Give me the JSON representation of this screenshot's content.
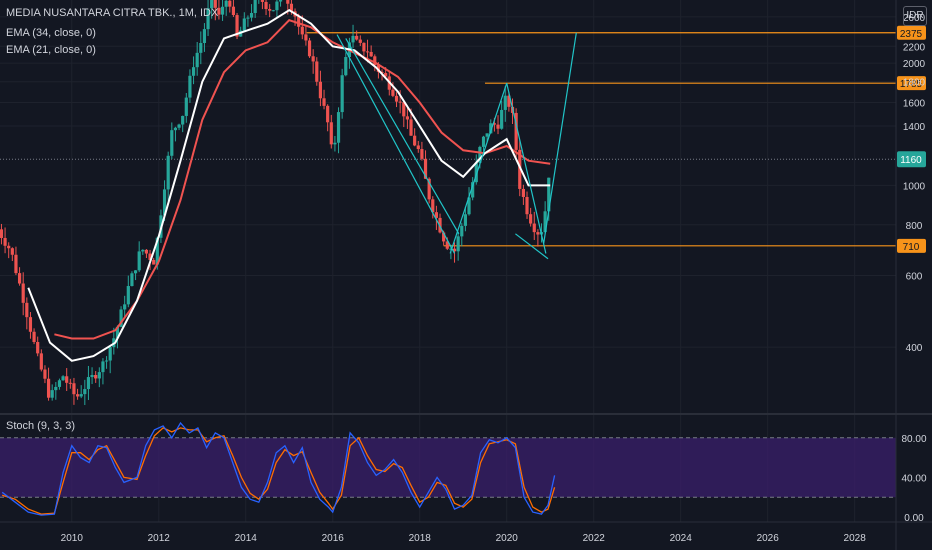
{
  "chart_data": {
    "type": "candlestick",
    "symbol_line": "MEDIA NUSANTARA CITRA TBK., 1M, IDX",
    "currency": "IDR",
    "indicators": [
      "EMA (34, close, 0)",
      "EMA (21, close, 0)"
    ],
    "oscillator_label": "Stoch (9, 3, 3)",
    "price_axis": {
      "ticks": [
        "2600",
        "2200",
        "2000",
        "1800",
        "1600",
        "1400",
        "1000",
        "800",
        "600",
        "400"
      ],
      "range": [
        280,
        2860
      ],
      "scale": "log"
    },
    "time_axis": {
      "ticks": [
        "2010",
        "2012",
        "2014",
        "2016",
        "2018",
        "2020",
        "2022",
        "2024",
        "2026",
        "2028"
      ],
      "range": [
        2008.35,
        2028.95
      ]
    },
    "levels": [
      {
        "value": 2375,
        "label": "2375",
        "start": 2015.4,
        "color": "#f7931a"
      },
      {
        "value": 1785,
        "label": "1785",
        "start": 2019.5,
        "color": "#f7931a"
      },
      {
        "value": 710,
        "label": "710",
        "start": 2018.55,
        "color": "#f7931a"
      }
    ],
    "last_price": {
      "value": 1160,
      "label": "1160",
      "color": "#26a69a"
    },
    "price_path": [
      [
        2008.3,
        780
      ],
      [
        2008.6,
        690
      ],
      [
        2008.9,
        520
      ],
      [
        2009.2,
        380
      ],
      [
        2009.5,
        300
      ],
      [
        2009.8,
        340
      ],
      [
        2010.1,
        300
      ],
      [
        2010.4,
        330
      ],
      [
        2010.7,
        360
      ],
      [
        2011.0,
        430
      ],
      [
        2011.3,
        560
      ],
      [
        2011.6,
        700
      ],
      [
        2011.9,
        650
      ],
      [
        2012.1,
        950
      ],
      [
        2012.3,
        1350
      ],
      [
        2012.55,
        1500
      ],
      [
        2012.8,
        2000
      ],
      [
        2013.0,
        2300
      ],
      [
        2013.2,
        2900
      ],
      [
        2013.4,
        2600
      ],
      [
        2013.6,
        2950
      ],
      [
        2013.8,
        2300
      ],
      [
        2014.0,
        2550
      ],
      [
        2014.3,
        2900
      ],
      [
        2014.6,
        2700
      ],
      [
        2014.9,
        2950
      ],
      [
        2015.1,
        2700
      ],
      [
        2015.3,
        2300
      ],
      [
        2015.5,
        2100
      ],
      [
        2015.7,
        1700
      ],
      [
        2015.9,
        1400
      ],
      [
        2016.0,
        1150
      ],
      [
        2016.2,
        1800
      ],
      [
        2016.4,
        2350
      ],
      [
        2016.6,
        2200
      ],
      [
        2016.8,
        2150
      ],
      [
        2017.0,
        1950
      ],
      [
        2017.2,
        1850
      ],
      [
        2017.4,
        1700
      ],
      [
        2017.6,
        1550
      ],
      [
        2017.8,
        1320
      ],
      [
        2018.0,
        1200
      ],
      [
        2018.2,
        950
      ],
      [
        2018.4,
        820
      ],
      [
        2018.6,
        720
      ],
      [
        2018.8,
        690
      ],
      [
        2019.0,
        820
      ],
      [
        2019.2,
        1000
      ],
      [
        2019.4,
        1250
      ],
      [
        2019.6,
        1400
      ],
      [
        2019.8,
        1420
      ],
      [
        2020.0,
        1660
      ],
      [
        2020.15,
        1450
      ],
      [
        2020.3,
        1000
      ],
      [
        2020.45,
        880
      ],
      [
        2020.6,
        800
      ],
      [
        2020.75,
        760
      ],
      [
        2020.85,
        800
      ],
      [
        2021.0,
        1160
      ]
    ],
    "ema21": [
      [
        2009.6,
        430
      ],
      [
        2010.0,
        420
      ],
      [
        2010.5,
        420
      ],
      [
        2011.0,
        440
      ],
      [
        2011.5,
        520
      ],
      [
        2012.0,
        650
      ],
      [
        2012.5,
        920
      ],
      [
        2013.0,
        1450
      ],
      [
        2013.5,
        1900
      ],
      [
        2014.0,
        2150
      ],
      [
        2014.5,
        2250
      ],
      [
        2015.0,
        2550
      ],
      [
        2015.5,
        2450
      ],
      [
        2016.0,
        2250
      ],
      [
        2016.5,
        2120
      ],
      [
        2017.0,
        2000
      ],
      [
        2017.5,
        1850
      ],
      [
        2018.0,
        1600
      ],
      [
        2018.5,
        1350
      ],
      [
        2019.0,
        1220
      ],
      [
        2019.5,
        1200
      ],
      [
        2020.0,
        1250
      ],
      [
        2020.5,
        1150
      ],
      [
        2021.0,
        1130
      ]
    ],
    "ema34": [
      [
        2009.0,
        560
      ],
      [
        2009.5,
        410
      ],
      [
        2010.0,
        370
      ],
      [
        2010.5,
        380
      ],
      [
        2011.0,
        410
      ],
      [
        2011.5,
        520
      ],
      [
        2012.0,
        750
      ],
      [
        2012.5,
        1150
      ],
      [
        2013.0,
        1800
      ],
      [
        2013.5,
        2300
      ],
      [
        2014.0,
        2400
      ],
      [
        2014.5,
        2500
      ],
      [
        2015.0,
        2700
      ],
      [
        2015.5,
        2500
      ],
      [
        2016.0,
        2200
      ],
      [
        2016.5,
        2150
      ],
      [
        2017.0,
        1950
      ],
      [
        2017.5,
        1700
      ],
      [
        2018.0,
        1400
      ],
      [
        2018.5,
        1150
      ],
      [
        2019.0,
        1050
      ],
      [
        2019.5,
        1200
      ],
      [
        2020.0,
        1300
      ],
      [
        2020.5,
        1000
      ],
      [
        2021.0,
        1000
      ]
    ],
    "pattern_lines": [
      [
        [
          2016.1,
          2350
        ],
        [
          2018.8,
          680
        ]
      ],
      [
        [
          2016.3,
          2300
        ],
        [
          2018.9,
          760
        ]
      ],
      [
        [
          2018.7,
          680
        ],
        [
          2020.0,
          1785
        ]
      ],
      [
        [
          2020.0,
          1785
        ],
        [
          2020.9,
          680
        ]
      ],
      [
        [
          2020.2,
          760
        ],
        [
          2020.95,
          660
        ]
      ],
      [
        [
          2020.85,
          720
        ],
        [
          2021.6,
          2375
        ]
      ]
    ],
    "stoch": {
      "range": [
        -5,
        100
      ],
      "ticks": [
        "80.00",
        "40.00",
        "0.00"
      ],
      "upper": 80,
      "lower": 20,
      "k": [
        [
          2008.4,
          25
        ],
        [
          2008.7,
          15
        ],
        [
          2009.0,
          5
        ],
        [
          2009.3,
          2
        ],
        [
          2009.6,
          3
        ],
        [
          2009.8,
          45
        ],
        [
          2010.0,
          72
        ],
        [
          2010.2,
          60
        ],
        [
          2010.4,
          55
        ],
        [
          2010.6,
          72
        ],
        [
          2010.8,
          70
        ],
        [
          2011.0,
          50
        ],
        [
          2011.2,
          35
        ],
        [
          2011.5,
          40
        ],
        [
          2011.7,
          72
        ],
        [
          2011.9,
          88
        ],
        [
          2012.1,
          92
        ],
        [
          2012.3,
          80
        ],
        [
          2012.5,
          95
        ],
        [
          2012.7,
          85
        ],
        [
          2012.9,
          90
        ],
        [
          2013.1,
          70
        ],
        [
          2013.3,
          85
        ],
        [
          2013.5,
          80
        ],
        [
          2013.7,
          55
        ],
        [
          2013.9,
          30
        ],
        [
          2014.1,
          18
        ],
        [
          2014.3,
          15
        ],
        [
          2014.5,
          35
        ],
        [
          2014.7,
          65
        ],
        [
          2014.9,
          72
        ],
        [
          2015.1,
          55
        ],
        [
          2015.3,
          70
        ],
        [
          2015.5,
          35
        ],
        [
          2015.7,
          18
        ],
        [
          2015.9,
          10
        ],
        [
          2016.0,
          5
        ],
        [
          2016.2,
          30
        ],
        [
          2016.4,
          85
        ],
        [
          2016.6,
          75
        ],
        [
          2016.8,
          55
        ],
        [
          2017.0,
          42
        ],
        [
          2017.2,
          48
        ],
        [
          2017.4,
          58
        ],
        [
          2017.6,
          45
        ],
        [
          2017.8,
          25
        ],
        [
          2018.0,
          10
        ],
        [
          2018.2,
          25
        ],
        [
          2018.4,
          40
        ],
        [
          2018.6,
          28
        ],
        [
          2018.8,
          8
        ],
        [
          2019.0,
          12
        ],
        [
          2019.2,
          22
        ],
        [
          2019.4,
          65
        ],
        [
          2019.6,
          78
        ],
        [
          2019.8,
          75
        ],
        [
          2020.0,
          80
        ],
        [
          2020.2,
          70
        ],
        [
          2020.4,
          20
        ],
        [
          2020.6,
          5
        ],
        [
          2020.8,
          3
        ],
        [
          2020.95,
          12
        ],
        [
          2021.1,
          42
        ]
      ],
      "d": [
        [
          2008.4,
          22
        ],
        [
          2008.7,
          18
        ],
        [
          2009.0,
          8
        ],
        [
          2009.3,
          3
        ],
        [
          2009.6,
          4
        ],
        [
          2009.8,
          35
        ],
        [
          2010.0,
          65
        ],
        [
          2010.2,
          65
        ],
        [
          2010.4,
          58
        ],
        [
          2010.6,
          68
        ],
        [
          2010.8,
          72
        ],
        [
          2011.0,
          56
        ],
        [
          2011.2,
          40
        ],
        [
          2011.5,
          38
        ],
        [
          2011.7,
          62
        ],
        [
          2011.9,
          82
        ],
        [
          2012.1,
          90
        ],
        [
          2012.3,
          86
        ],
        [
          2012.5,
          90
        ],
        [
          2012.7,
          88
        ],
        [
          2012.9,
          88
        ],
        [
          2013.1,
          76
        ],
        [
          2013.3,
          80
        ],
        [
          2013.5,
          82
        ],
        [
          2013.7,
          62
        ],
        [
          2013.9,
          40
        ],
        [
          2014.1,
          24
        ],
        [
          2014.3,
          18
        ],
        [
          2014.5,
          28
        ],
        [
          2014.7,
          55
        ],
        [
          2014.9,
          68
        ],
        [
          2015.1,
          62
        ],
        [
          2015.3,
          66
        ],
        [
          2015.5,
          45
        ],
        [
          2015.7,
          25
        ],
        [
          2015.9,
          14
        ],
        [
          2016.0,
          8
        ],
        [
          2016.2,
          22
        ],
        [
          2016.4,
          72
        ],
        [
          2016.6,
          80
        ],
        [
          2016.8,
          62
        ],
        [
          2017.0,
          48
        ],
        [
          2017.2,
          46
        ],
        [
          2017.4,
          54
        ],
        [
          2017.6,
          50
        ],
        [
          2017.8,
          32
        ],
        [
          2018.0,
          15
        ],
        [
          2018.2,
          20
        ],
        [
          2018.4,
          35
        ],
        [
          2018.6,
          32
        ],
        [
          2018.8,
          14
        ],
        [
          2019.0,
          10
        ],
        [
          2019.2,
          18
        ],
        [
          2019.4,
          55
        ],
        [
          2019.6,
          74
        ],
        [
          2019.8,
          76
        ],
        [
          2020.0,
          78
        ],
        [
          2020.2,
          74
        ],
        [
          2020.4,
          30
        ],
        [
          2020.6,
          10
        ],
        [
          2020.8,
          5
        ],
        [
          2020.95,
          8
        ],
        [
          2021.1,
          30
        ]
      ]
    },
    "colors": {
      "up": "#26a69a",
      "down": "#ef5350",
      "ema34": "#ffffff",
      "ema21": "#f05350",
      "levels": "#f7931a",
      "pattern": "#21c5c8",
      "stoch_k": "#2962ff",
      "stoch_d": "#ff6d00",
      "stoch_band": "#3a1f6b",
      "background": "#131722",
      "grid": "#1e222d",
      "text": "#d1d4dc"
    }
  }
}
